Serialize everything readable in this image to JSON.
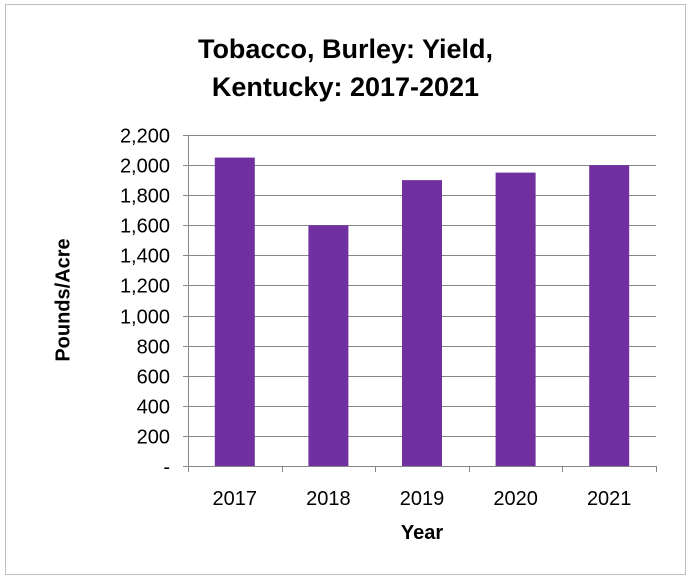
{
  "chart_data": {
    "type": "bar",
    "title_lines": [
      "Tobacco, Burley: Yield,",
      "Kentucky: 2017-2021"
    ],
    "xlabel": "Year",
    "ylabel": "Pounds/Acre",
    "categories": [
      "2017",
      "2018",
      "2019",
      "2020",
      "2021"
    ],
    "values": [
      2050,
      1600,
      1900,
      1950,
      2000
    ],
    "ylim": [
      0,
      2200
    ],
    "yticks": [
      0,
      200,
      400,
      600,
      800,
      1000,
      1200,
      1400,
      1600,
      1800,
      2000,
      2200
    ],
    "ytick_labels": [
      "-",
      "200",
      "400",
      "600",
      "800",
      "1,000",
      "1,200",
      "1,400",
      "1,600",
      "1,800",
      "2,000",
      "2,200"
    ],
    "grid": true,
    "legend": "none",
    "bar_color": "#7030a0"
  }
}
